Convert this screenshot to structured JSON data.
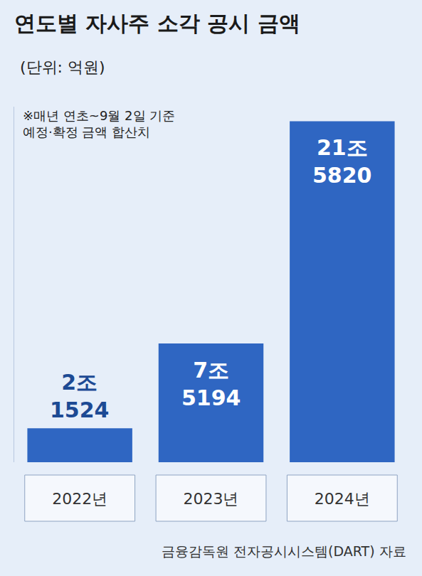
{
  "chart_data": {
    "type": "bar",
    "title": "연도별 자사주 소각 공시 금액",
    "subtitle": "(단위: 억원)",
    "note": [
      "※매년 연초~9월 2일 기준",
      "예정·확정 금액 합산치"
    ],
    "source": "금융감독원 전자공시시스템(DART) 자료",
    "categories": [
      "2022년",
      "2023년",
      "2024년"
    ],
    "values": [
      21524,
      75194,
      215820
    ],
    "value_labels": [
      "2조 1524",
      "7조 5194",
      "21조 5820"
    ],
    "data_labels": true,
    "color": "#2f66c2",
    "ylim": [
      0,
      225000
    ],
    "grid": false,
    "tick_labels": "x"
  }
}
